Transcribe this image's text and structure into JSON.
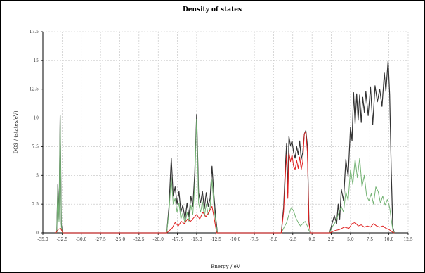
{
  "chart_data": {
    "type": "line",
    "title": "Density of states",
    "xlabel": "Energy / eV",
    "ylabel": "DOS / (states/eV)",
    "xlim": [
      -35.0,
      12.5
    ],
    "ylim": [
      0,
      17.5
    ],
    "x_ticks": [
      "-35.0",
      "-32.5",
      "-30.0",
      "-27.5",
      "-25.0",
      "-22.5",
      "-20.0",
      "-17.5",
      "-15.0",
      "-12.5",
      "-10.0",
      "-7.5",
      "-5.0",
      "-2.5",
      "0.0",
      "2.5",
      "5.0",
      "7.5",
      "10.0",
      "12.5"
    ],
    "x_tick_values": [
      -35,
      -32.5,
      -30,
      -27.5,
      -25,
      -22.5,
      -20,
      -17.5,
      -15,
      -12.5,
      -10,
      -7.5,
      -5,
      -2.5,
      0,
      2.5,
      5,
      7.5,
      10,
      12.5
    ],
    "y_ticks": [
      "0",
      "2.5",
      "5",
      "7.5",
      "10",
      "12.5",
      "15",
      "17.5"
    ],
    "y_tick_values": [
      0,
      2.5,
      5,
      7.5,
      10,
      12.5,
      15,
      17.5
    ],
    "grid": true,
    "series": [
      {
        "color": "#333333",
        "points": [
          [
            -33.2,
            0
          ],
          [
            -33.05,
            4.2
          ],
          [
            -32.9,
            1.2
          ],
          [
            -32.75,
            10.2
          ],
          [
            -32.6,
            0.8
          ],
          [
            -32.45,
            0
          ],
          [
            -18.9,
            0
          ],
          [
            -18.6,
            2.2
          ],
          [
            -18.3,
            6.5
          ],
          [
            -18.05,
            3.2
          ],
          [
            -17.8,
            4.0
          ],
          [
            -17.55,
            2.5
          ],
          [
            -17.3,
            3.6
          ],
          [
            -17.05,
            1.8
          ],
          [
            -16.8,
            2.4
          ],
          [
            -16.5,
            1.2
          ],
          [
            -16.25,
            2.6
          ],
          [
            -16.0,
            1.4
          ],
          [
            -15.75,
            3.2
          ],
          [
            -15.5,
            2.3
          ],
          [
            -15.25,
            5.2
          ],
          [
            -15.0,
            10.3
          ],
          [
            -14.75,
            3.5
          ],
          [
            -14.5,
            2.6
          ],
          [
            -14.25,
            3.6
          ],
          [
            -14.0,
            2.1
          ],
          [
            -13.75,
            3.5
          ],
          [
            -13.5,
            2.3
          ],
          [
            -13.25,
            3.0
          ],
          [
            -13.0,
            5.8
          ],
          [
            -12.75,
            3.2
          ],
          [
            -12.5,
            1.2
          ],
          [
            -12.3,
            0
          ],
          [
            -4.0,
            0
          ],
          [
            -3.7,
            2.2
          ],
          [
            -3.45,
            6.0
          ],
          [
            -3.3,
            7.8
          ],
          [
            -3.15,
            3.5
          ],
          [
            -3.0,
            8.4
          ],
          [
            -2.8,
            7.6
          ],
          [
            -2.6,
            8.0
          ],
          [
            -2.4,
            7.0
          ],
          [
            -2.2,
            6.5
          ],
          [
            -2.0,
            7.5
          ],
          [
            -1.8,
            6.8
          ],
          [
            -1.6,
            8.0
          ],
          [
            -1.4,
            6.4
          ],
          [
            -1.2,
            7.0
          ],
          [
            -1.0,
            8.6
          ],
          [
            -0.8,
            8.9
          ],
          [
            -0.6,
            7.6
          ],
          [
            -0.4,
            1.0
          ],
          [
            -0.2,
            0
          ],
          [
            2.3,
            0
          ],
          [
            2.6,
            0.8
          ],
          [
            2.9,
            1.5
          ],
          [
            3.2,
            0.8
          ],
          [
            3.4,
            2.5
          ],
          [
            3.6,
            1.2
          ],
          [
            3.8,
            3.8
          ],
          [
            4.1,
            2.8
          ],
          [
            4.4,
            6.4
          ],
          [
            4.7,
            4.9
          ],
          [
            5.0,
            9.2
          ],
          [
            5.2,
            8.0
          ],
          [
            5.4,
            12.2
          ],
          [
            5.6,
            9.5
          ],
          [
            5.8,
            12.1
          ],
          [
            6.0,
            9.8
          ],
          [
            6.2,
            12.0
          ],
          [
            6.4,
            9.6
          ],
          [
            6.6,
            11.8
          ],
          [
            6.8,
            10.5
          ],
          [
            7.0,
            12.3
          ],
          [
            7.3,
            10.2
          ],
          [
            7.6,
            12.7
          ],
          [
            7.9,
            9.4
          ],
          [
            8.2,
            12.8
          ],
          [
            8.5,
            11.4
          ],
          [
            8.8,
            12.5
          ],
          [
            9.1,
            11.0
          ],
          [
            9.4,
            13.9
          ],
          [
            9.6,
            12.3
          ],
          [
            9.9,
            15.0
          ],
          [
            10.1,
            12.0
          ],
          [
            10.3,
            5.5
          ],
          [
            10.5,
            0.5
          ],
          [
            10.7,
            0
          ]
        ]
      },
      {
        "color": "#74b374",
        "points": [
          [
            -33.2,
            0
          ],
          [
            -33.05,
            4.0
          ],
          [
            -32.9,
            1.0
          ],
          [
            -32.75,
            10.2
          ],
          [
            -32.6,
            0.5
          ],
          [
            -32.45,
            0
          ],
          [
            -18.9,
            0
          ],
          [
            -18.6,
            1.8
          ],
          [
            -18.3,
            4.8
          ],
          [
            -18.05,
            2.5
          ],
          [
            -17.8,
            3.0
          ],
          [
            -17.55,
            1.8
          ],
          [
            -17.3,
            2.6
          ],
          [
            -17.05,
            1.2
          ],
          [
            -16.8,
            1.7
          ],
          [
            -16.5,
            0.8
          ],
          [
            -16.25,
            1.8
          ],
          [
            -16.0,
            1.0
          ],
          [
            -15.75,
            2.4
          ],
          [
            -15.5,
            1.6
          ],
          [
            -15.25,
            4.2
          ],
          [
            -15.0,
            9.9
          ],
          [
            -14.75,
            2.6
          ],
          [
            -14.5,
            1.8
          ],
          [
            -14.25,
            2.7
          ],
          [
            -14.0,
            1.4
          ],
          [
            -13.75,
            2.5
          ],
          [
            -13.5,
            1.6
          ],
          [
            -13.25,
            2.2
          ],
          [
            -13.0,
            4.6
          ],
          [
            -12.75,
            2.2
          ],
          [
            -12.5,
            0.8
          ],
          [
            -12.3,
            0
          ],
          [
            -4.0,
            0
          ],
          [
            -3.7,
            0.4
          ],
          [
            -3.3,
            0.9
          ],
          [
            -3.0,
            1.6
          ],
          [
            -2.7,
            2.2
          ],
          [
            -2.4,
            1.9
          ],
          [
            -2.1,
            1.3
          ],
          [
            -1.8,
            0.9
          ],
          [
            -1.5,
            0.6
          ],
          [
            -1.2,
            0.8
          ],
          [
            -0.9,
            1.0
          ],
          [
            -0.6,
            0.6
          ],
          [
            -0.4,
            0.2
          ],
          [
            -0.2,
            0
          ],
          [
            2.3,
            0
          ],
          [
            2.7,
            0.6
          ],
          [
            3.1,
            1.0
          ],
          [
            3.5,
            1.8
          ],
          [
            3.8,
            2.3
          ],
          [
            4.1,
            1.8
          ],
          [
            4.4,
            3.6
          ],
          [
            4.7,
            2.8
          ],
          [
            5.0,
            5.5
          ],
          [
            5.3,
            4.2
          ],
          [
            5.6,
            6.4
          ],
          [
            5.9,
            4.8
          ],
          [
            6.2,
            6.5
          ],
          [
            6.5,
            4.0
          ],
          [
            6.8,
            5.0
          ],
          [
            7.1,
            3.2
          ],
          [
            7.4,
            2.8
          ],
          [
            7.7,
            3.4
          ],
          [
            8.0,
            2.5
          ],
          [
            8.3,
            4.0
          ],
          [
            8.6,
            3.6
          ],
          [
            8.9,
            2.6
          ],
          [
            9.2,
            3.2
          ],
          [
            9.5,
            2.4
          ],
          [
            9.8,
            2.9
          ],
          [
            10.1,
            2.2
          ],
          [
            10.3,
            1.2
          ],
          [
            10.5,
            0.3
          ],
          [
            10.7,
            0
          ]
        ]
      },
      {
        "color": "#e02020",
        "points": [
          [
            -33.3,
            0
          ],
          [
            -33.0,
            0.3
          ],
          [
            -32.7,
            0.4
          ],
          [
            -32.4,
            0
          ],
          [
            -18.9,
            0
          ],
          [
            -18.2,
            0.4
          ],
          [
            -17.8,
            0.9
          ],
          [
            -17.4,
            0.6
          ],
          [
            -17.0,
            1.0
          ],
          [
            -16.6,
            0.8
          ],
          [
            -16.2,
            1.2
          ],
          [
            -15.8,
            1.0
          ],
          [
            -15.4,
            1.3
          ],
          [
            -15.0,
            1.6
          ],
          [
            -14.6,
            1.2
          ],
          [
            -14.2,
            1.8
          ],
          [
            -13.8,
            1.4
          ],
          [
            -13.4,
            1.8
          ],
          [
            -13.0,
            2.3
          ],
          [
            -12.7,
            1.2
          ],
          [
            -12.4,
            0
          ],
          [
            -4.0,
            0
          ],
          [
            -3.7,
            1.8
          ],
          [
            -3.45,
            5.2
          ],
          [
            -3.3,
            6.8
          ],
          [
            -3.15,
            3.0
          ],
          [
            -3.0,
            7.0
          ],
          [
            -2.8,
            6.2
          ],
          [
            -2.6,
            6.8
          ],
          [
            -2.4,
            5.8
          ],
          [
            -2.2,
            5.5
          ],
          [
            -2.0,
            6.3
          ],
          [
            -1.8,
            5.6
          ],
          [
            -1.6,
            6.6
          ],
          [
            -1.4,
            5.5
          ],
          [
            -1.2,
            6.2
          ],
          [
            -1.0,
            8.6
          ],
          [
            -0.8,
            8.8
          ],
          [
            -0.6,
            7.0
          ],
          [
            -0.4,
            0.8
          ],
          [
            -0.2,
            0
          ],
          [
            2.3,
            0
          ],
          [
            3.0,
            0.2
          ],
          [
            3.6,
            0.3
          ],
          [
            4.2,
            0.5
          ],
          [
            4.8,
            0.4
          ],
          [
            5.2,
            0.8
          ],
          [
            5.6,
            0.9
          ],
          [
            6.0,
            0.6
          ],
          [
            6.4,
            0.7
          ],
          [
            6.8,
            0.5
          ],
          [
            7.2,
            0.6
          ],
          [
            7.6,
            0.5
          ],
          [
            8.0,
            0.8
          ],
          [
            8.4,
            0.6
          ],
          [
            8.8,
            0.5
          ],
          [
            9.2,
            0.6
          ],
          [
            9.6,
            0.4
          ],
          [
            10.0,
            0.3
          ],
          [
            10.4,
            0.1
          ],
          [
            10.7,
            0
          ]
        ]
      }
    ]
  }
}
